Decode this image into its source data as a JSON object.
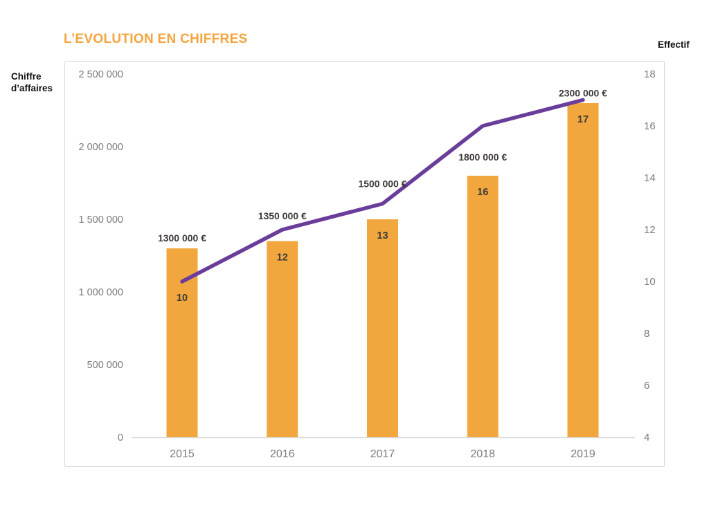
{
  "page": {
    "background": "#ffffff"
  },
  "chart_data": {
    "type": "bar",
    "title": "L’EVOLUTION EN CHIFFRES",
    "title_color": "#F5A43C",
    "categories": [
      "2015",
      "2016",
      "2017",
      "2018",
      "2019"
    ],
    "series": [
      {
        "name": "Chiffre d’affaires",
        "type": "bar",
        "axis": "left",
        "color": "#F1A73E",
        "values": [
          1300000,
          1350000,
          1500000,
          1800000,
          2300000
        ],
        "data_labels": [
          "1300 000 €",
          "1350 000 €",
          "1500 000 €",
          "1800 000 €",
          "2300 000 €"
        ]
      },
      {
        "name": "Effectif",
        "type": "line",
        "axis": "right",
        "color": "#6A3D9A",
        "values": [
          10,
          12,
          13,
          16,
          17
        ],
        "data_labels": [
          "10",
          "12",
          "13",
          "16",
          "17"
        ]
      }
    ],
    "left_axis": {
      "label": "Chiffre d’affaires",
      "tick_labels": [
        "2 500 000",
        "2 000 000",
        "1 500 000",
        "1 000 000",
        "500 000",
        "0"
      ],
      "tick_values": [
        2500000,
        2000000,
        1500000,
        1000000,
        500000,
        0
      ],
      "min": 0,
      "max": 2500000
    },
    "right_axis": {
      "label": "Effectif",
      "tick_labels": [
        "18",
        "16",
        "14",
        "12",
        "10",
        "8",
        "6",
        "4"
      ],
      "tick_values": [
        18,
        16,
        14,
        12,
        10,
        8,
        6,
        4
      ],
      "min": 4,
      "max": 18
    },
    "legend": "none",
    "grid": "off",
    "frame_color": "#d9d9d9",
    "tick_text_color": "#7b7b7b",
    "data_label_color": "#3c3b39"
  }
}
